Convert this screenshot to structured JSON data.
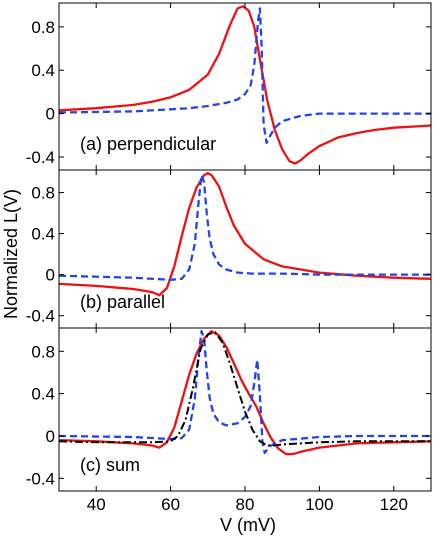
{
  "chart_data": [
    {
      "type": "line",
      "annotation": "(a) perpendicular",
      "ylim": [
        -0.52,
        1.02
      ],
      "yticks": [
        -0.4,
        0,
        0.4,
        0.8
      ],
      "ytick_labels": [
        "-0.4",
        "0",
        "0.4",
        "0.8"
      ],
      "series": [
        {
          "style": "solid",
          "color": "#ee1111",
          "x": [
            30,
            40,
            50,
            55,
            60,
            65,
            70,
            73,
            76,
            78,
            79.5,
            81,
            82.5,
            84,
            86,
            88,
            90,
            92,
            93.5,
            95,
            97,
            100,
            105,
            110,
            115,
            120,
            125,
            130
          ],
          "y": [
            0.03,
            0.05,
            0.08,
            0.11,
            0.15,
            0.22,
            0.36,
            0.55,
            0.82,
            0.97,
            0.99,
            0.95,
            0.8,
            0.5,
            0.12,
            -0.15,
            -0.33,
            -0.44,
            -0.46,
            -0.43,
            -0.37,
            -0.3,
            -0.22,
            -0.18,
            -0.15,
            -0.13,
            -0.12,
            -0.11
          ]
        },
        {
          "style": "dashed",
          "color": "#2244ee",
          "x": [
            30,
            50,
            60,
            65,
            70,
            75,
            78,
            80,
            81.5,
            82.5,
            83.5,
            84,
            84.5,
            85,
            85.8,
            86.5,
            88,
            90,
            95,
            100,
            110,
            120,
            130
          ],
          "y": [
            0.01,
            0.02,
            0.04,
            0.05,
            0.07,
            0.1,
            0.13,
            0.18,
            0.26,
            0.45,
            0.85,
            0.97,
            0.6,
            -0.1,
            -0.27,
            -0.22,
            -0.13,
            -0.07,
            -0.02,
            0.0,
            0.0,
            0.0,
            0.0
          ]
        }
      ]
    },
    {
      "type": "line",
      "annotation": "(b) parallel",
      "ylim": [
        -0.52,
        1.02
      ],
      "yticks": [
        -0.4,
        0,
        0.4,
        0.8
      ],
      "ytick_labels": [
        "-0.4",
        "0",
        "0.4",
        "0.8"
      ],
      "series": [
        {
          "style": "solid",
          "color": "#ee1111",
          "x": [
            30,
            40,
            50,
            55,
            57,
            59,
            61,
            63,
            65,
            67,
            69,
            70,
            71,
            73,
            75,
            77,
            80,
            85,
            90,
            95,
            100,
            110,
            120,
            130
          ],
          "y": [
            -0.09,
            -0.11,
            -0.14,
            -0.17,
            -0.2,
            -0.13,
            0.08,
            0.38,
            0.65,
            0.85,
            0.97,
            0.99,
            0.97,
            0.86,
            0.66,
            0.48,
            0.3,
            0.15,
            0.08,
            0.05,
            0.02,
            -0.01,
            -0.03,
            -0.04
          ],
          "note": "solid"
        },
        {
          "style": "dashed",
          "color": "#2244ee",
          "x": [
            30,
            50,
            60,
            63,
            65,
            66.5,
            67.5,
            68.3,
            69,
            69.7,
            70.5,
            71.5,
            73,
            75,
            78,
            82,
            90,
            100,
            130
          ],
          "y": [
            -0.01,
            -0.03,
            -0.05,
            -0.04,
            0.05,
            0.3,
            0.7,
            0.97,
            0.9,
            0.6,
            0.35,
            0.2,
            0.1,
            0.05,
            0.02,
            0.01,
            0.01,
            0.0,
            0.0
          ]
        }
      ]
    },
    {
      "type": "line",
      "annotation": "(c) sum",
      "xlabel": "V (mV)",
      "xlim": [
        30,
        130
      ],
      "xticks": [
        40,
        60,
        80,
        100,
        120
      ],
      "xtick_labels": [
        "40",
        "60",
        "80",
        "100",
        "120"
      ],
      "ylim": [
        -0.52,
        1.02
      ],
      "yticks": [
        -0.4,
        0,
        0.4,
        0.8
      ],
      "ytick_labels": [
        "-0.4",
        "0",
        "0.4",
        "0.8"
      ],
      "series": [
        {
          "style": "solid",
          "color": "#ee1111",
          "x": [
            30,
            40,
            50,
            55,
            57,
            59,
            61,
            63,
            65,
            67,
            69,
            71,
            73,
            75,
            77,
            79,
            81,
            83,
            85,
            87,
            89,
            91,
            93,
            95,
            100,
            110,
            120,
            130
          ],
          "y": [
            -0.04,
            -0.05,
            -0.07,
            -0.09,
            -0.11,
            -0.06,
            0.08,
            0.33,
            0.58,
            0.78,
            0.92,
            0.99,
            0.95,
            0.84,
            0.69,
            0.53,
            0.4,
            0.28,
            0.12,
            -0.02,
            -0.12,
            -0.17,
            -0.17,
            -0.15,
            -0.11,
            -0.07,
            -0.06,
            -0.05
          ]
        },
        {
          "style": "dashed",
          "color": "#2244ee",
          "x": [
            30,
            50,
            60,
            63,
            65,
            66.5,
            67.5,
            68.3,
            69,
            69.7,
            70.5,
            71.5,
            73,
            75,
            78,
            80,
            81.5,
            82.5,
            83.3,
            84,
            84.7,
            85.3,
            86,
            87,
            90,
            100,
            110,
            120,
            130
          ],
          "y": [
            0.0,
            -0.01,
            -0.03,
            -0.02,
            0.06,
            0.35,
            0.75,
            0.99,
            0.92,
            0.62,
            0.36,
            0.21,
            0.13,
            0.1,
            0.12,
            0.18,
            0.28,
            0.5,
            0.72,
            0.38,
            -0.06,
            -0.16,
            -0.13,
            -0.09,
            -0.04,
            -0.01,
            0.0,
            0.0,
            0.0
          ]
        },
        {
          "style": "dashdot",
          "color": "#000000",
          "x": [
            30,
            40,
            50,
            55,
            60,
            62,
            64,
            66,
            68,
            70,
            72,
            74,
            76,
            78,
            80,
            82,
            84,
            86,
            88,
            90,
            95,
            100,
            110,
            120,
            130
          ],
          "y": [
            -0.05,
            -0.06,
            -0.06,
            -0.06,
            -0.05,
            0.0,
            0.15,
            0.45,
            0.82,
            0.96,
            0.98,
            0.88,
            0.68,
            0.45,
            0.23,
            0.06,
            -0.05,
            -0.09,
            -0.09,
            -0.08,
            -0.07,
            -0.06,
            -0.05,
            -0.05,
            -0.05
          ]
        }
      ]
    }
  ],
  "shared_ylabel": "Normalized L(V)"
}
